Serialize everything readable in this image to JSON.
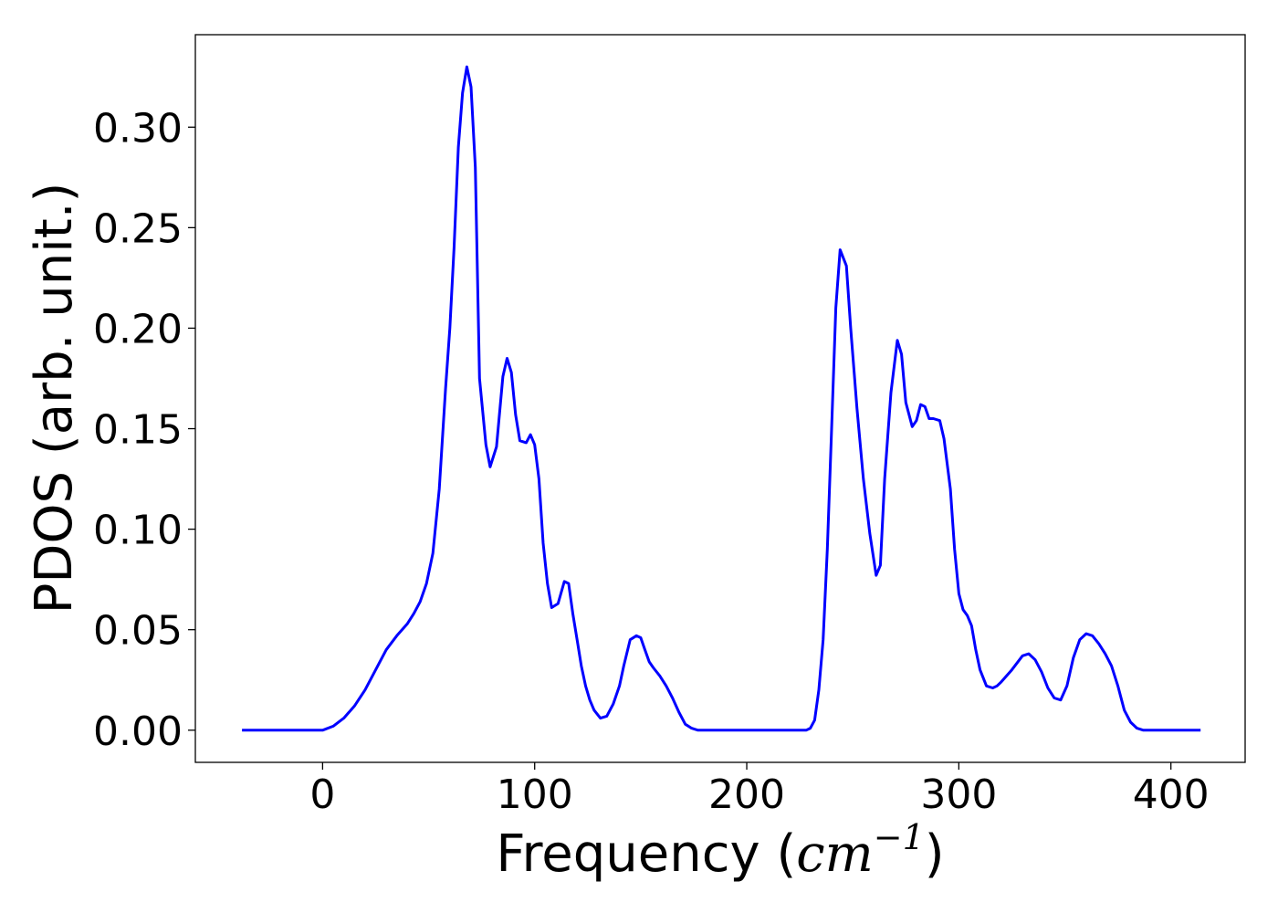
{
  "chart_data": {
    "type": "line",
    "title": "",
    "xlabel": "Frequency",
    "xlabel_unit_base": "cm",
    "xlabel_unit_exp": "−1",
    "ylabel": "PDOS (arb. unit.)",
    "xlim": [
      -60,
      435
    ],
    "ylim": [
      -0.016,
      0.346
    ],
    "xticks": [
      0,
      100,
      200,
      300,
      400
    ],
    "xtick_labels": [
      "0",
      "100",
      "200",
      "300",
      "400"
    ],
    "yticks": [
      0.0,
      0.05,
      0.1,
      0.15,
      0.2,
      0.25,
      0.3
    ],
    "ytick_labels": [
      "0.00",
      "0.05",
      "0.10",
      "0.15",
      "0.20",
      "0.25",
      "0.30"
    ],
    "grid": false,
    "series": [
      {
        "color": "#0000ff",
        "x": [
          -38,
          0,
          5,
          10,
          15,
          20,
          25,
          30,
          35,
          40,
          43,
          46,
          49,
          52,
          55,
          58,
          60,
          62,
          64,
          66,
          68,
          70,
          72,
          74,
          77,
          79,
          82,
          85,
          87,
          89,
          91,
          93,
          96,
          98,
          100,
          102,
          104,
          106,
          108,
          111,
          114,
          116,
          118,
          120,
          122,
          124,
          126,
          128,
          131,
          134,
          137,
          140,
          142,
          145,
          148,
          150,
          152,
          154,
          156,
          159,
          162,
          165,
          168,
          171,
          174,
          177,
          180,
          185,
          190,
          228,
          230,
          232,
          234,
          236,
          238,
          240,
          242,
          244,
          247,
          249,
          252,
          255,
          258,
          261,
          263,
          265,
          268,
          271,
          273,
          275,
          278,
          280,
          282,
          284,
          286,
          288,
          291,
          293,
          296,
          298,
          300,
          302,
          304,
          306,
          308,
          310,
          313,
          316,
          318,
          320,
          325,
          330,
          333,
          336,
          339,
          342,
          345,
          348,
          351,
          354,
          357,
          360,
          363,
          366,
          369,
          372,
          375,
          378,
          381,
          384,
          387,
          390,
          395,
          414
        ],
        "y": [
          0.0,
          0.0,
          0.002,
          0.006,
          0.012,
          0.02,
          0.03,
          0.04,
          0.047,
          0.053,
          0.058,
          0.064,
          0.073,
          0.088,
          0.12,
          0.17,
          0.2,
          0.24,
          0.29,
          0.317,
          0.33,
          0.32,
          0.28,
          0.175,
          0.142,
          0.131,
          0.141,
          0.176,
          0.185,
          0.178,
          0.157,
          0.144,
          0.143,
          0.147,
          0.142,
          0.125,
          0.093,
          0.073,
          0.061,
          0.063,
          0.074,
          0.073,
          0.058,
          0.045,
          0.032,
          0.022,
          0.015,
          0.01,
          0.006,
          0.007,
          0.013,
          0.022,
          0.032,
          0.045,
          0.047,
          0.046,
          0.04,
          0.034,
          0.031,
          0.027,
          0.022,
          0.016,
          0.009,
          0.003,
          0.001,
          0.0,
          0.0,
          0.0,
          0.0,
          0.0,
          0.001,
          0.005,
          0.02,
          0.045,
          0.09,
          0.15,
          0.21,
          0.239,
          0.231,
          0.2,
          0.16,
          0.125,
          0.098,
          0.077,
          0.082,
          0.125,
          0.168,
          0.194,
          0.187,
          0.163,
          0.151,
          0.154,
          0.162,
          0.161,
          0.155,
          0.155,
          0.154,
          0.145,
          0.12,
          0.09,
          0.068,
          0.06,
          0.057,
          0.052,
          0.04,
          0.03,
          0.022,
          0.021,
          0.022,
          0.024,
          0.03,
          0.037,
          0.038,
          0.035,
          0.029,
          0.021,
          0.016,
          0.015,
          0.022,
          0.036,
          0.045,
          0.048,
          0.047,
          0.043,
          0.038,
          0.032,
          0.022,
          0.01,
          0.004,
          0.001,
          0.0,
          0.0,
          0.0,
          0.0
        ]
      }
    ]
  }
}
